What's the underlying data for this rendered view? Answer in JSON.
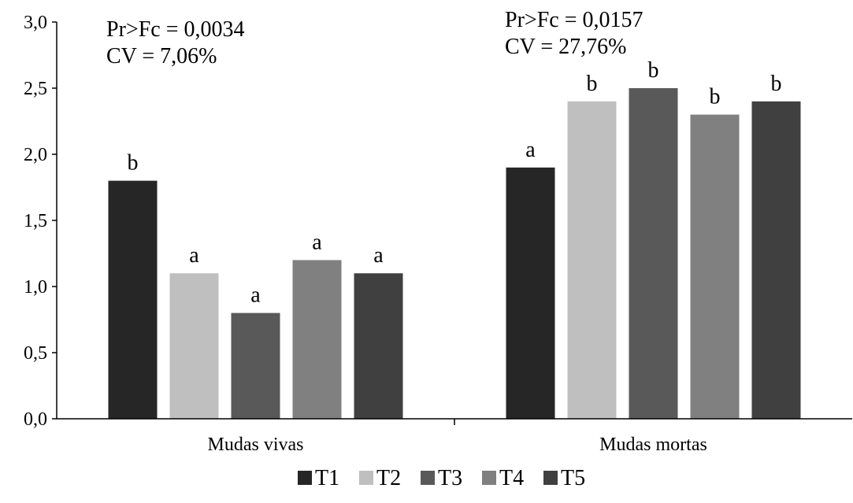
{
  "chart_data": {
    "type": "bar",
    "title": "",
    "xlabel": "",
    "ylabel": "",
    "ylim": [
      0,
      3
    ],
    "yticks": [
      "0,0",
      "0,5",
      "1,0",
      "1,5",
      "2,0",
      "2,5",
      "3,0"
    ],
    "ytick_values": [
      0,
      0.5,
      1.0,
      1.5,
      2.0,
      2.5,
      3.0
    ],
    "grid": false,
    "legend_position": "bottom",
    "categories": [
      "Mudas vivas",
      "Mudas mortas"
    ],
    "series": [
      {
        "name": "T1",
        "color": "#262626",
        "values": [
          1.8,
          1.9
        ],
        "letters": [
          "b",
          "a"
        ]
      },
      {
        "name": "T2",
        "color": "#bfbfbf",
        "values": [
          1.1,
          2.4
        ],
        "letters": [
          "a",
          "b"
        ]
      },
      {
        "name": "T3",
        "color": "#595959",
        "values": [
          0.8,
          2.5
        ],
        "letters": [
          "a",
          "b"
        ]
      },
      {
        "name": "T4",
        "color": "#808080",
        "values": [
          1.2,
          2.3
        ],
        "letters": [
          "a",
          "b"
        ]
      },
      {
        "name": "T5",
        "color": "#404040",
        "values": [
          1.1,
          2.4
        ],
        "letters": [
          "a",
          "b"
        ]
      }
    ],
    "annotations": [
      {
        "group": "Mudas vivas",
        "lines": [
          "Pr>Fc = 0,0034",
          "CV = 7,06%"
        ]
      },
      {
        "group": "Mudas mortas",
        "lines": [
          "Pr>Fc = 0,0157",
          "CV = 27,76%"
        ]
      }
    ]
  }
}
